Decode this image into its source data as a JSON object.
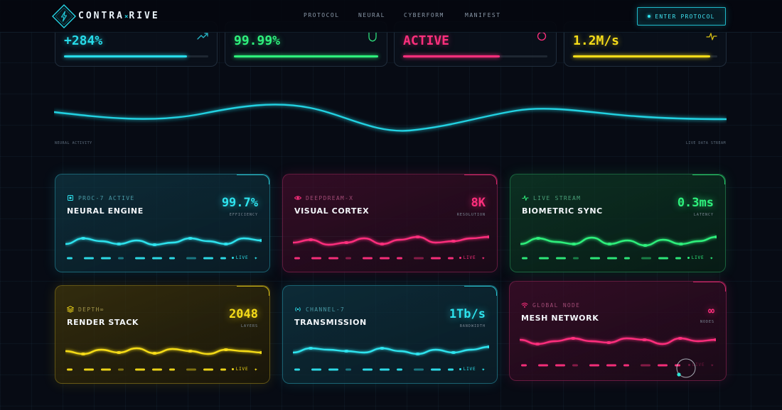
{
  "brand": {
    "name_part1": "CONTRA",
    "name_sep": "×",
    "name_part2": "RIVE",
    "accent": "#24d6e6"
  },
  "nav": {
    "links": [
      {
        "label": "PROTOCOL"
      },
      {
        "label": "NEURAL"
      },
      {
        "label": "CYBERFORM"
      },
      {
        "label": "MANIFEST"
      }
    ],
    "cta_label": "ENTER PROTOCOL"
  },
  "stats": [
    {
      "value": "+284%",
      "icon": "trend-up-icon",
      "color": "#27dcea",
      "progress": 0.85
    },
    {
      "value": "99.99%",
      "icon": "shield-icon",
      "color": "#2ef07c",
      "progress": 1.0
    },
    {
      "value": "ACTIVE",
      "icon": "ring-icon",
      "color": "#ff2f7d",
      "progress": 0.67
    },
    {
      "value": "1.2M/s",
      "icon": "pulse-icon",
      "color": "#f6dc19",
      "progress": 0.95
    }
  ],
  "wave": {
    "left_label": "NEURAL ACTIVITY",
    "right_label": "LIVE DATA STREAM",
    "color": "#22d2e2"
  },
  "cards": [
    {
      "kicker": "PROC-7 ACTIVE",
      "title": "NEURAL ENGINE",
      "metric": "99.7%",
      "metric_label": "EFFICIENCY",
      "live": "LIVE",
      "icon": "chip-icon",
      "color": "#2ee3ee",
      "theme": "cyan"
    },
    {
      "kicker": "DEEPDREAM-X",
      "title": "VISUAL CORTEX",
      "metric": "8K",
      "metric_label": "RESOLUTION",
      "live": "LIVE",
      "icon": "eye-icon",
      "color": "#ff2f7d",
      "theme": "pink"
    },
    {
      "kicker": "LIVE STREAM",
      "title": "BIOMETRIC SYNC",
      "metric": "0.3ms",
      "metric_label": "LATENCY",
      "live": "LIVE",
      "icon": "pulse-icon",
      "color": "#2ef07c",
      "theme": "green"
    },
    {
      "kicker": "DEPTH∞",
      "title": "RENDER STACK",
      "metric": "2048",
      "metric_label": "LAYERS",
      "live": "LIVE",
      "icon": "layers-icon",
      "color": "#f6dc19",
      "theme": "yellow"
    },
    {
      "kicker": "CHANNEL-7",
      "title": "TRANSMISSION",
      "metric": "1Tb/s",
      "metric_label": "BANDWIDTH",
      "live": "LIVE",
      "icon": "broadcast-icon",
      "color": "#2ee3ee",
      "theme": "cyan"
    },
    {
      "kicker": "GLOBAL NODE",
      "title": "MESH NETWORK",
      "metric": "∞",
      "metric_label": "NODES",
      "live": "LIVE",
      "icon": "wifi-icon",
      "color": "#ff2f7d",
      "theme": "pink"
    }
  ]
}
